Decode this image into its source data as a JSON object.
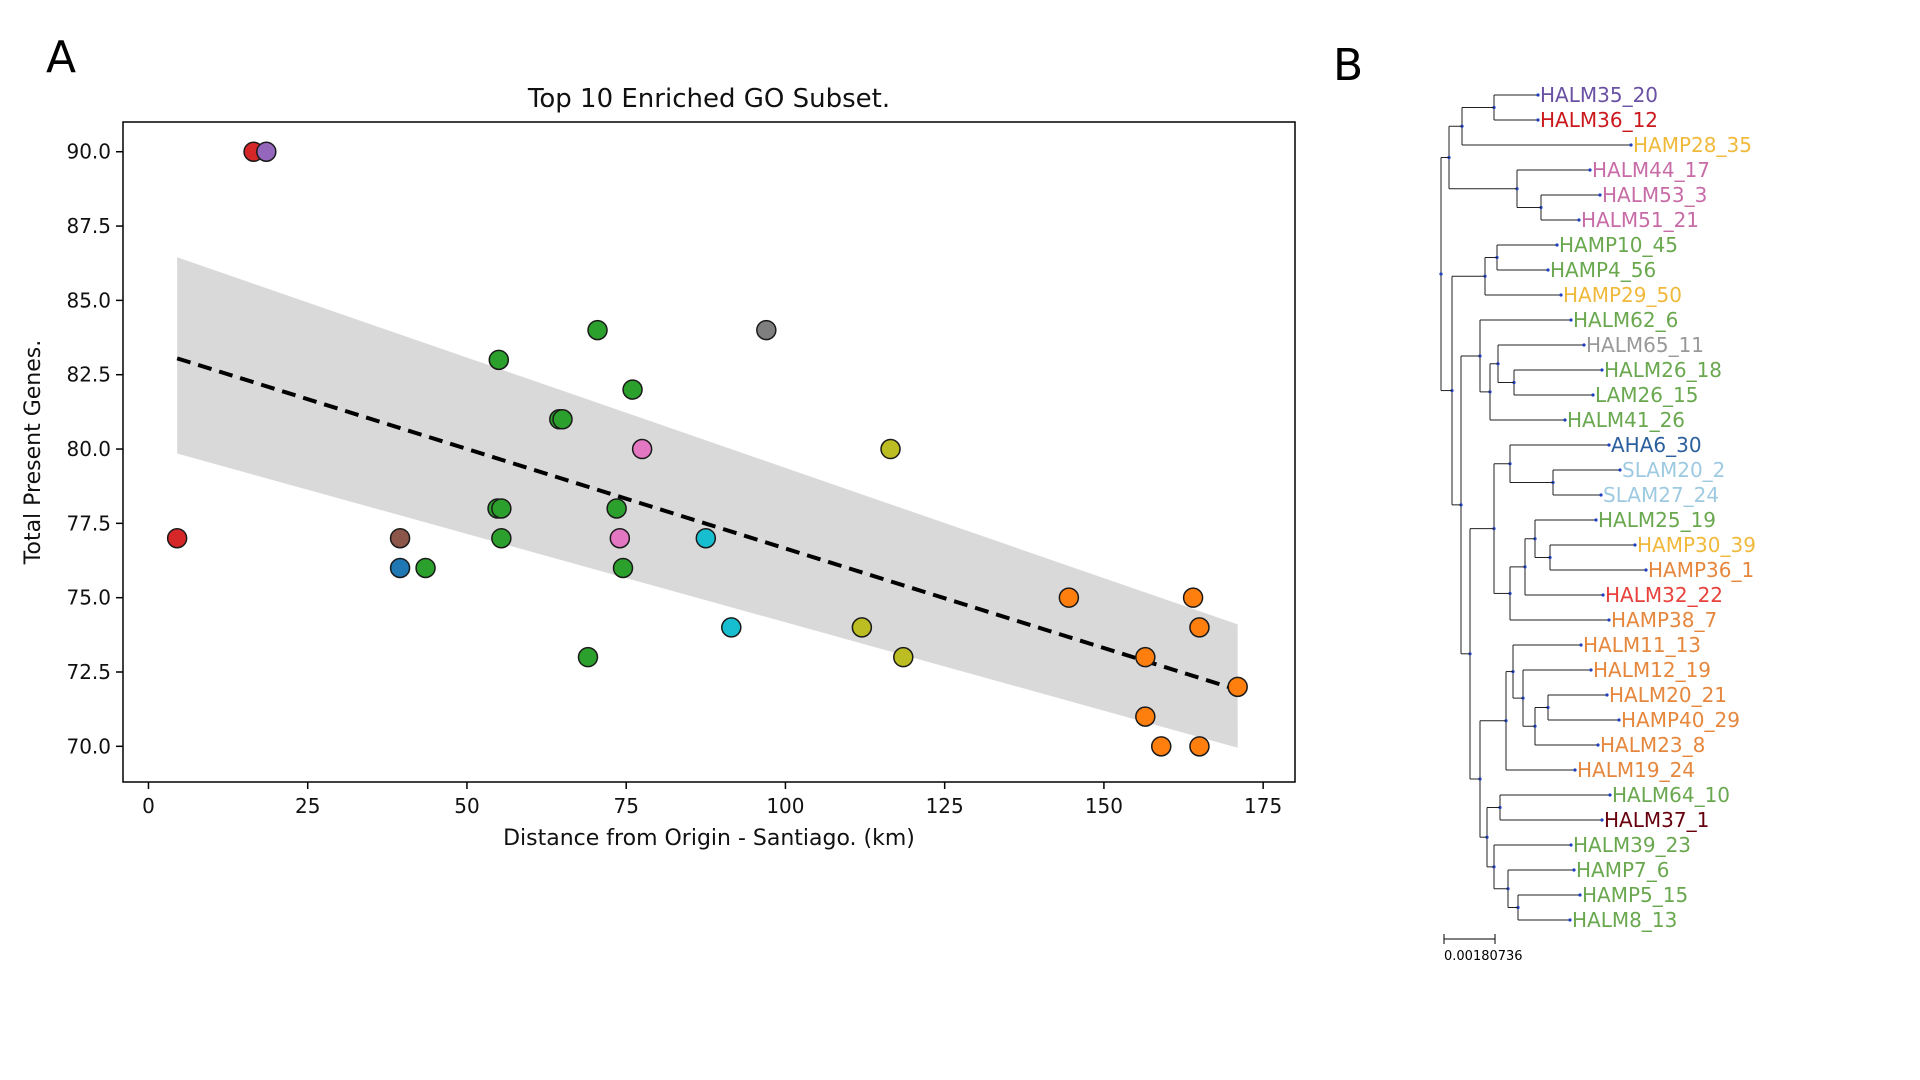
{
  "panels": {
    "a_label": "A",
    "b_label": "B"
  },
  "chart_data": [
    {
      "type": "scatter",
      "title": "Top 10 Enriched GO Subset.",
      "xlabel": "Distance from Origin - Santiago. (km)",
      "ylabel": "Total Present Genes.",
      "xlim": [
        -4,
        180
      ],
      "ylim": [
        68.8,
        91.0
      ],
      "xticks": [
        0,
        25,
        50,
        75,
        100,
        125,
        150,
        175
      ],
      "yticks": [
        70.0,
        72.5,
        75.0,
        77.5,
        80.0,
        82.5,
        85.0,
        87.5,
        90.0
      ],
      "xtick_labels": [
        "0",
        "25",
        "50",
        "75",
        "100",
        "125",
        "150",
        "175"
      ],
      "ytick_labels": [
        "70.0",
        "72.5",
        "75.0",
        "77.5",
        "80.0",
        "82.5",
        "85.0",
        "87.5",
        "90.0"
      ],
      "grid": false,
      "points": [
        {
          "x": 16.5,
          "y": 90,
          "color": "#d62728"
        },
        {
          "x": 18.5,
          "y": 90,
          "color": "#9467bd"
        },
        {
          "x": 4.5,
          "y": 77,
          "color": "#d62728"
        },
        {
          "x": 39.5,
          "y": 77,
          "color": "#8c564b"
        },
        {
          "x": 39.5,
          "y": 76,
          "color": "#1f77b4"
        },
        {
          "x": 43.5,
          "y": 76,
          "color": "#2ca02c"
        },
        {
          "x": 55,
          "y": 83,
          "color": "#2ca02c"
        },
        {
          "x": 54.8,
          "y": 78,
          "color": "#2ca02c"
        },
        {
          "x": 55.4,
          "y": 78,
          "color": "#2ca02c"
        },
        {
          "x": 55.4,
          "y": 77,
          "color": "#2ca02c"
        },
        {
          "x": 64.5,
          "y": 81,
          "color": "#2ca02c"
        },
        {
          "x": 65,
          "y": 81,
          "color": "#2ca02c"
        },
        {
          "x": 70.5,
          "y": 84,
          "color": "#2ca02c"
        },
        {
          "x": 69,
          "y": 73,
          "color": "#2ca02c"
        },
        {
          "x": 73.5,
          "y": 78,
          "color": "#2ca02c"
        },
        {
          "x": 74.5,
          "y": 76,
          "color": "#2ca02c"
        },
        {
          "x": 76,
          "y": 82,
          "color": "#2ca02c"
        },
        {
          "x": 74,
          "y": 77,
          "color": "#e377c2"
        },
        {
          "x": 77.5,
          "y": 80,
          "color": "#e377c2"
        },
        {
          "x": 87.5,
          "y": 77,
          "color": "#17becf"
        },
        {
          "x": 91.5,
          "y": 74,
          "color": "#17becf"
        },
        {
          "x": 97,
          "y": 84,
          "color": "#7f7f7f"
        },
        {
          "x": 112,
          "y": 74,
          "color": "#bcbd22"
        },
        {
          "x": 116.5,
          "y": 80,
          "color": "#bcbd22"
        },
        {
          "x": 118.5,
          "y": 73,
          "color": "#bcbd22"
        },
        {
          "x": 144.5,
          "y": 75,
          "color": "#ff7f0e"
        },
        {
          "x": 156.5,
          "y": 73,
          "color": "#ff7f0e"
        },
        {
          "x": 156.5,
          "y": 71,
          "color": "#ff7f0e"
        },
        {
          "x": 159,
          "y": 70,
          "color": "#ff7f0e"
        },
        {
          "x": 164,
          "y": 75,
          "color": "#ff7f0e"
        },
        {
          "x": 165,
          "y": 74,
          "color": "#ff7f0e"
        },
        {
          "x": 165,
          "y": 70,
          "color": "#ff7f0e"
        },
        {
          "x": 171,
          "y": 72,
          "color": "#ff7f0e"
        }
      ],
      "regression": {
        "x": [
          4.5,
          171
        ],
        "y": [
          83.05,
          71.9
        ],
        "style": "dashed",
        "color": "#000000"
      },
      "confidence_band": {
        "x": [
          4.5,
          171
        ],
        "upper": [
          86.45,
          74.1
        ],
        "lower": [
          79.85,
          69.95
        ],
        "color": "#d9d9d9"
      }
    },
    {
      "type": "tree",
      "scale_bar_label": "0.00180736",
      "leaves": [
        {
          "label": "HALM35_20",
          "color": "#6a51a3"
        },
        {
          "label": "HALM36_12",
          "color": "#cb181d"
        },
        {
          "label": "HAMP28_35",
          "color": "#f0b93b"
        },
        {
          "label": "HALM44_17",
          "color": "#c86ca8"
        },
        {
          "label": "HALM53_3",
          "color": "#c86ca8"
        },
        {
          "label": "HALM51_21",
          "color": "#c86ca8"
        },
        {
          "label": "HAMP10_45",
          "color": "#6aa84f"
        },
        {
          "label": "HAMP4_56",
          "color": "#6aa84f"
        },
        {
          "label": "HAMP29_50",
          "color": "#f0b93b"
        },
        {
          "label": "HALM62_6",
          "color": "#6aa84f"
        },
        {
          "label": "HALM65_11",
          "color": "#999999"
        },
        {
          "label": "HALM26_18",
          "color": "#6aa84f"
        },
        {
          "label": "LAM26_15",
          "color": "#6aa84f"
        },
        {
          "label": "HALM41_26",
          "color": "#6aa84f"
        },
        {
          "label": "AHA6_30",
          "color": "#2b5f9e"
        },
        {
          "label": "SLAM20_2",
          "color": "#9ecae1"
        },
        {
          "label": "SLAM27_24",
          "color": "#9ecae1"
        },
        {
          "label": "HALM25_19",
          "color": "#6aa84f"
        },
        {
          "label": "HAMP30_39",
          "color": "#f0b93b"
        },
        {
          "label": "HAMP36_1",
          "color": "#e6873e"
        },
        {
          "label": "HALM32_22",
          "color": "#e8413c"
        },
        {
          "label": "HAMP38_7",
          "color": "#e6873e"
        },
        {
          "label": "HALM11_13",
          "color": "#e6873e"
        },
        {
          "label": "HALM12_19",
          "color": "#e6873e"
        },
        {
          "label": "HALM20_21",
          "color": "#e6873e"
        },
        {
          "label": "HAMP40_29",
          "color": "#e6873e"
        },
        {
          "label": "HALM23_8",
          "color": "#e6873e"
        },
        {
          "label": "HALM19_24",
          "color": "#e6873e"
        },
        {
          "label": "HALM64_10",
          "color": "#6aa84f"
        },
        {
          "label": "HALM37_1",
          "color": "#67000d"
        },
        {
          "label": "HALM39_23",
          "color": "#6aa84f"
        },
        {
          "label": "HAMP7_6",
          "color": "#6aa84f"
        },
        {
          "label": "HAMP5_15",
          "color": "#6aa84f"
        },
        {
          "label": "HALM8_13",
          "color": "#6aa84f"
        }
      ]
    }
  ]
}
